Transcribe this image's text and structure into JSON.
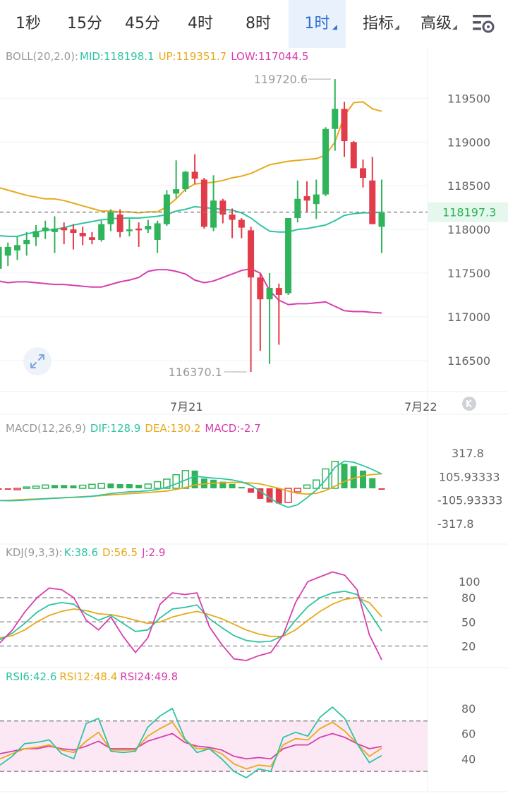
{
  "tabs": [
    {
      "label": "1秒",
      "active": false,
      "dropdown": false
    },
    {
      "label": "15分",
      "active": false,
      "dropdown": false
    },
    {
      "label": "45分",
      "active": false,
      "dropdown": false
    },
    {
      "label": "4时",
      "active": false,
      "dropdown": false
    },
    {
      "label": "8时",
      "active": false,
      "dropdown": false
    },
    {
      "label": "1时",
      "active": true,
      "dropdown": true
    },
    {
      "label": "指标",
      "active": false,
      "dropdown": true
    },
    {
      "label": "高级",
      "active": false,
      "dropdown": true
    }
  ],
  "settings_icon": "chart-settings-icon",
  "colors": {
    "up": "#2fb35b",
    "down": "#e23b49",
    "mid": "#2ec4a2",
    "upper": "#e7a919",
    "lower": "#d63fae",
    "price_line": "#2ec4a2"
  },
  "boll_label": {
    "name": "BOLL(20,2.0):",
    "mid": "MID:118198.1",
    "up": "UP:119351.7",
    "low": "LOW:117044.5"
  },
  "macd_label": {
    "name": "MACD(12,26,9)",
    "dif": "DIF:128.9",
    "dea": "DEA:130.2",
    "macd": "MACD:-2.7"
  },
  "kdj_label": {
    "name": "KDJ(9,3,3):",
    "k": "K:38.6",
    "d": "D:56.5",
    "j": "J:2.9"
  },
  "rsi_label": {
    "r6": "RSI6:42.6",
    "r12": "RSI12:48.4",
    "r24": "RSI24:49.8"
  },
  "chart_data": [
    {
      "type": "candlestick",
      "ylim": [
        116200,
        119850
      ],
      "yticks": [
        119500,
        119000,
        118500,
        118000,
        117500,
        117000,
        116500
      ],
      "xticks": [
        "7月21",
        "7月22"
      ],
      "current_price": "118197.3",
      "max_label": "119720.6",
      "min_label": "116370.1",
      "candles": [
        {
          "o": 117550,
          "h": 118020,
          "l": 117300,
          "c": 117800
        },
        {
          "o": 117700,
          "h": 117850,
          "l": 117580,
          "c": 117800
        },
        {
          "o": 117760,
          "h": 117920,
          "l": 117650,
          "c": 117820
        },
        {
          "o": 117830,
          "h": 117970,
          "l": 117700,
          "c": 117880
        },
        {
          "o": 117910,
          "h": 118050,
          "l": 117810,
          "c": 117980
        },
        {
          "o": 117980,
          "h": 118100,
          "l": 117890,
          "c": 118020
        },
        {
          "o": 117970,
          "h": 118150,
          "l": 117730,
          "c": 118010
        },
        {
          "o": 118020,
          "h": 118080,
          "l": 117830,
          "c": 117990
        },
        {
          "o": 118000,
          "h": 118060,
          "l": 117770,
          "c": 117960
        },
        {
          "o": 117960,
          "h": 118030,
          "l": 117820,
          "c": 117920
        },
        {
          "o": 117910,
          "h": 117970,
          "l": 117830,
          "c": 117880
        },
        {
          "o": 117880,
          "h": 118100,
          "l": 117860,
          "c": 118060
        },
        {
          "o": 118060,
          "h": 118230,
          "l": 117980,
          "c": 118200
        },
        {
          "o": 118170,
          "h": 118230,
          "l": 117910,
          "c": 117970
        },
        {
          "o": 117980,
          "h": 118120,
          "l": 117920,
          "c": 118000
        },
        {
          "o": 118010,
          "h": 118080,
          "l": 117800,
          "c": 117990
        },
        {
          "o": 118000,
          "h": 118110,
          "l": 117960,
          "c": 118040
        },
        {
          "o": 117880,
          "h": 118100,
          "l": 117730,
          "c": 118070
        },
        {
          "o": 118060,
          "h": 118450,
          "l": 118040,
          "c": 118400
        },
        {
          "o": 118410,
          "h": 118790,
          "l": 118360,
          "c": 118460
        },
        {
          "o": 118460,
          "h": 118670,
          "l": 118430,
          "c": 118660
        },
        {
          "o": 118660,
          "h": 118860,
          "l": 118520,
          "c": 118580
        },
        {
          "o": 118570,
          "h": 118590,
          "l": 118010,
          "c": 118030
        },
        {
          "o": 118020,
          "h": 118620,
          "l": 117980,
          "c": 118330
        },
        {
          "o": 118330,
          "h": 118350,
          "l": 118070,
          "c": 118170
        },
        {
          "o": 118170,
          "h": 118240,
          "l": 117900,
          "c": 118110
        },
        {
          "o": 118110,
          "h": 118130,
          "l": 117900,
          "c": 118020
        },
        {
          "o": 117990,
          "h": 118030,
          "l": 116370,
          "c": 117450
        },
        {
          "o": 117450,
          "h": 117500,
          "l": 116610,
          "c": 117200
        },
        {
          "o": 117200,
          "h": 117500,
          "l": 116460,
          "c": 117330
        },
        {
          "o": 117330,
          "h": 117380,
          "l": 116680,
          "c": 117250
        },
        {
          "o": 117270,
          "h": 118130,
          "l": 117250,
          "c": 118130
        },
        {
          "o": 118130,
          "h": 118560,
          "l": 118080,
          "c": 118350
        },
        {
          "o": 118380,
          "h": 118550,
          "l": 118200,
          "c": 118330
        },
        {
          "o": 118290,
          "h": 118570,
          "l": 118120,
          "c": 118400
        },
        {
          "o": 118400,
          "h": 119170,
          "l": 118380,
          "c": 119150
        },
        {
          "o": 119150,
          "h": 119720,
          "l": 118900,
          "c": 119380
        },
        {
          "o": 119380,
          "h": 119460,
          "l": 118830,
          "c": 119010
        },
        {
          "o": 119000,
          "h": 119010,
          "l": 118700,
          "c": 118700
        },
        {
          "o": 118700,
          "h": 118800,
          "l": 118480,
          "c": 118590
        },
        {
          "o": 118560,
          "h": 118830,
          "l": 118090,
          "c": 118060
        },
        {
          "o": 118030,
          "h": 118570,
          "l": 117730,
          "c": 118190
        }
      ],
      "boll_mid": [
        117930,
        117920,
        117920,
        117950,
        117970,
        117990,
        118000,
        118020,
        118050,
        118070,
        118090,
        118110,
        118120,
        118130,
        118130,
        118130,
        118140,
        118150,
        118170,
        118210,
        118230,
        118260,
        118250,
        118240,
        118230,
        118220,
        118190,
        118130,
        118050,
        117980,
        117970,
        117970,
        118000,
        118010,
        118030,
        118050,
        118100,
        118160,
        118180,
        118190,
        118190,
        118198
      ],
      "boll_up": [
        118480,
        118450,
        118420,
        118390,
        118370,
        118350,
        118350,
        118330,
        118300,
        118270,
        118240,
        118210,
        118210,
        118200,
        118200,
        118190,
        118200,
        118200,
        118260,
        118350,
        118460,
        118520,
        118530,
        118540,
        118560,
        118590,
        118610,
        118640,
        118690,
        118740,
        118760,
        118780,
        118790,
        118800,
        118810,
        118850,
        119000,
        119300,
        119450,
        119460,
        119380,
        119352
      ],
      "boll_low": [
        117410,
        117390,
        117400,
        117400,
        117390,
        117380,
        117370,
        117370,
        117360,
        117350,
        117340,
        117340,
        117370,
        117400,
        117420,
        117450,
        117520,
        117540,
        117540,
        117520,
        117490,
        117420,
        117390,
        117410,
        117450,
        117490,
        117530,
        117550,
        117500,
        117300,
        117190,
        117140,
        117150,
        117150,
        117160,
        117170,
        117120,
        117070,
        117060,
        117060,
        117050,
        117044
      ]
    },
    {
      "type": "bar_line",
      "name": "MACD(12,26,9)",
      "ylim": [
        -420,
        420
      ],
      "yticks": [
        "317.8",
        "105.93333",
        "-105.93333",
        "-317.8"
      ],
      "histogram": [
        -6,
        -7,
        -4,
        12,
        20,
        30,
        30,
        30,
        27,
        28,
        36,
        43,
        43,
        38,
        38,
        32,
        39,
        60,
        83,
        123,
        160,
        160,
        88,
        78,
        60,
        40,
        12,
        -40,
        -95,
        -128,
        -137,
        -127,
        -32,
        30,
        75,
        175,
        243,
        222,
        200,
        160,
        92,
        -2.7
      ],
      "dif": [
        -110,
        -112,
        -110,
        -105,
        -100,
        -95,
        -90,
        -85,
        -82,
        -78,
        -72,
        -60,
        -48,
        -38,
        -32,
        -28,
        -22,
        -10,
        10,
        40,
        75,
        110,
        100,
        92,
        86,
        76,
        58,
        28,
        -25,
        -85,
        -138,
        -172,
        -148,
        -85,
        -15,
        75,
        190,
        245,
        235,
        205,
        170,
        128.9
      ],
      "dea": [
        -110,
        -108,
        -104,
        -100,
        -96,
        -92,
        -88,
        -84,
        -80,
        -75,
        -71,
        -66,
        -60,
        -54,
        -48,
        -43,
        -38,
        -31,
        -24,
        -10,
        8,
        30,
        40,
        45,
        50,
        54,
        53,
        48,
        40,
        20,
        0,
        -25,
        -45,
        -52,
        -45,
        -20,
        20,
        62,
        90,
        112,
        125,
        130.2
      ]
    },
    {
      "type": "line",
      "name": "KDJ(9,3,3)",
      "ylim": [
        -5,
        130
      ],
      "yticks": [
        100,
        80,
        50,
        20
      ],
      "k": [
        28,
        36,
        48,
        62,
        71,
        74,
        72,
        60,
        52,
        58,
        48,
        38,
        40,
        55,
        66,
        68,
        71,
        54,
        43,
        33,
        27,
        25,
        26,
        33,
        52,
        69,
        80,
        86,
        88,
        84,
        62,
        38.6
      ],
      "d": [
        30,
        33,
        40,
        50,
        58,
        63,
        66,
        64,
        60,
        59,
        56,
        52,
        48,
        50,
        56,
        60,
        63,
        59,
        54,
        47,
        40,
        35,
        32,
        32,
        40,
        52,
        63,
        72,
        78,
        80,
        74,
        56.5
      ],
      "j": [
        24,
        40,
        62,
        80,
        92,
        90,
        80,
        52,
        40,
        56,
        32,
        12,
        30,
        72,
        86,
        84,
        86,
        44,
        22,
        4,
        2,
        8,
        12,
        34,
        74,
        100,
        106,
        112,
        108,
        90,
        34,
        2.9
      ]
    },
    {
      "type": "line",
      "name": "RSI",
      "ylim": [
        15,
        100
      ],
      "yticks": [
        80,
        60,
        40
      ],
      "band": [
        30,
        70
      ],
      "rsi6": [
        35,
        42,
        52,
        53,
        55,
        44,
        40,
        68,
        72,
        46,
        45,
        46,
        65,
        74,
        80,
        56,
        45,
        48,
        40,
        30,
        25,
        32,
        30,
        57,
        61,
        58,
        73,
        81,
        72,
        52,
        37,
        42.6
      ],
      "rsi12": [
        40,
        44,
        48,
        49,
        51,
        47,
        45,
        54,
        61,
        47,
        47,
        47,
        58,
        64,
        69,
        55,
        48,
        48,
        44,
        36,
        32,
        35,
        34,
        51,
        56,
        55,
        64,
        69,
        62,
        52,
        42,
        48.4
      ],
      "rsi24": [
        44,
        46,
        48,
        48,
        50,
        48,
        47,
        50,
        54,
        48,
        48,
        48,
        54,
        57,
        60,
        53,
        50,
        49,
        47,
        42,
        40,
        41,
        40,
        48,
        51,
        51,
        57,
        60,
        57,
        52,
        48,
        49.8
      ]
    }
  ]
}
